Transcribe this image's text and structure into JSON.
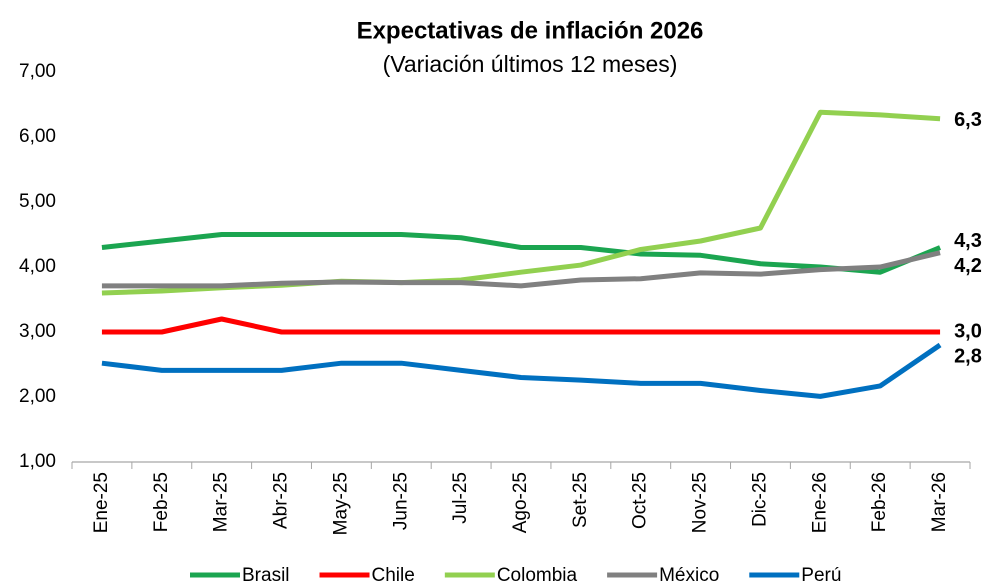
{
  "chart_data": {
    "type": "line",
    "title": "Expectativas de inflación 2026",
    "subtitle": "(Variación últimos 12 meses)",
    "categories": [
      "Ene-25",
      "Feb-25",
      "Mar-25",
      "Abr-25",
      "May-25",
      "Jun-25",
      "Jul-25",
      "Ago-25",
      "Set-25",
      "Oct-25",
      "Nov-25",
      "Dic-25",
      "Ene-26",
      "Feb-26",
      "Mar-26"
    ],
    "series": [
      {
        "name": "Brasil",
        "color": "#1ba550",
        "values": [
          4.3,
          4.4,
          4.5,
          4.5,
          4.5,
          4.5,
          4.45,
          4.3,
          4.3,
          4.2,
          4.18,
          4.05,
          4.0,
          3.92,
          4.3
        ],
        "value_labels": [
          null,
          null,
          null,
          null,
          null,
          null,
          null,
          null,
          null,
          null,
          null,
          null,
          null,
          null,
          "4,3"
        ]
      },
      {
        "name": "Chile",
        "color": "#ff0000",
        "values": [
          3.0,
          3.0,
          3.2,
          3.0,
          3.0,
          3.0,
          3.0,
          3.0,
          3.0,
          3.0,
          3.0,
          3.0,
          3.0,
          3.0,
          3.0
        ],
        "value_labels": [
          null,
          null,
          null,
          null,
          null,
          null,
          null,
          null,
          null,
          null,
          null,
          null,
          null,
          null,
          "3,0"
        ]
      },
      {
        "name": "Colombia",
        "color": "#92d050",
        "values": [
          3.6,
          3.63,
          3.68,
          3.72,
          3.78,
          3.76,
          3.8,
          3.92,
          4.03,
          4.27,
          4.4,
          4.6,
          6.38,
          6.34,
          6.28
        ],
        "value_labels": [
          null,
          null,
          null,
          null,
          null,
          null,
          null,
          null,
          null,
          null,
          null,
          null,
          null,
          null,
          "6,3"
        ]
      },
      {
        "name": "México",
        "color": "#808080",
        "values": [
          3.71,
          3.71,
          3.71,
          3.75,
          3.77,
          3.76,
          3.76,
          3.71,
          3.8,
          3.82,
          3.91,
          3.89,
          3.96,
          4.0,
          4.22
        ],
        "value_labels": [
          null,
          null,
          null,
          null,
          null,
          null,
          null,
          null,
          null,
          null,
          null,
          null,
          null,
          null,
          "4,2"
        ]
      },
      {
        "name": "Perú",
        "color": "#0070c0",
        "values": [
          2.52,
          2.41,
          2.41,
          2.41,
          2.52,
          2.52,
          2.41,
          2.3,
          2.26,
          2.21,
          2.21,
          2.1,
          2.01,
          2.17,
          2.8
        ],
        "value_labels": [
          null,
          null,
          null,
          null,
          null,
          null,
          null,
          null,
          null,
          null,
          null,
          null,
          null,
          null,
          "2,8"
        ]
      }
    ],
    "ylim": [
      1,
      7
    ],
    "yticks": [
      {
        "value": 1,
        "label": "1,00"
      },
      {
        "value": 2,
        "label": "2,00"
      },
      {
        "value": 3,
        "label": "3,00"
      },
      {
        "value": 4,
        "label": "4,00"
      },
      {
        "value": 5,
        "label": "5,00"
      },
      {
        "value": 6,
        "label": "6,00"
      },
      {
        "value": 7,
        "label": "7,00"
      }
    ],
    "grid": false
  }
}
